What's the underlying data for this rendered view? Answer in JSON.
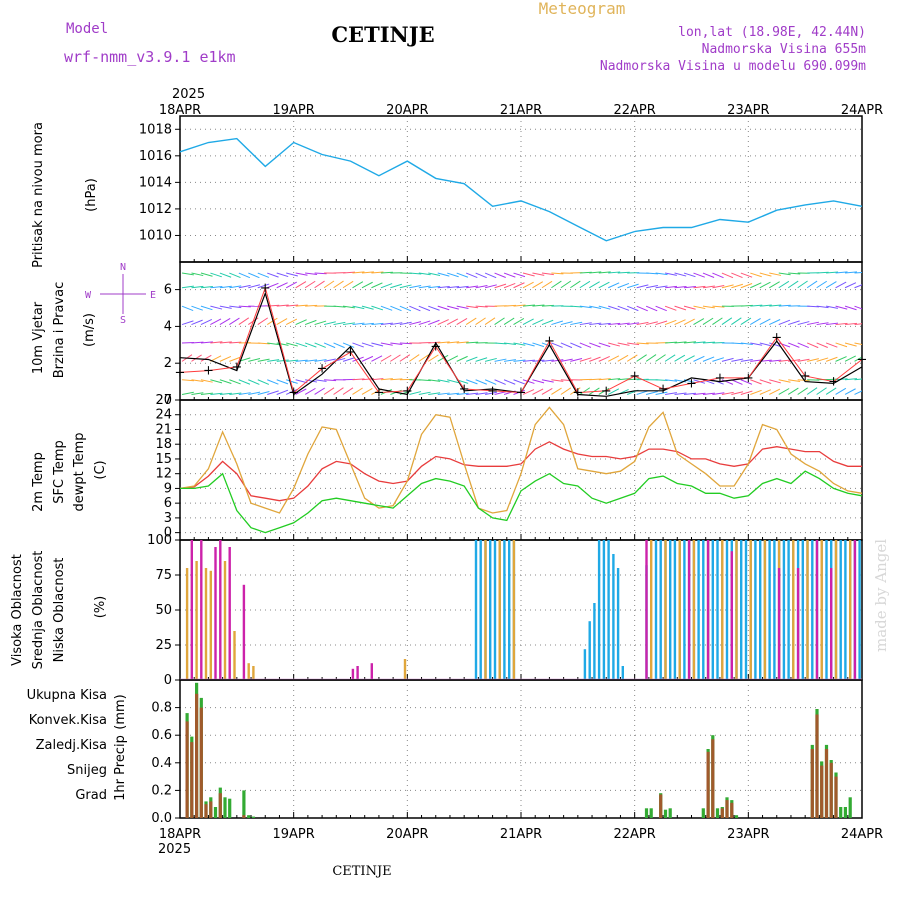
{
  "header": {
    "model_label": "Model",
    "model_value": "wrf-nmm_v3.9.1 e1km",
    "station_title": "CETINJE",
    "product": "Meteogram",
    "lonlat": "lon,lat (18.98E, 42.44N)",
    "altitude": "Nadmorska Visina 655m",
    "model_altitude": "Nadmorska Visina u modelu 690.099m",
    "year_top": "2025",
    "year_bottom": "2025",
    "footer_station": "CETINJE",
    "watermark": "made by Angel"
  },
  "colors": {
    "pressure": "#1fa9e6",
    "wind_speed": "#000000",
    "gust": "#ff3c3c",
    "temp2m": "#e83c3c",
    "sfc_temp": "#e0a63c",
    "dewpoint": "#22cc22",
    "cloud_high": "#1fa9e6",
    "cloud_mid": "#e0a63c",
    "cloud_low": "#cc22aa",
    "precip_total": "#33aa33",
    "precip_conv": "#ff3333",
    "precip_strat": "#ff8833",
    "snow": "#3333ff",
    "graupel": "#22cccc",
    "watermark": "#d8d8d8"
  },
  "chart_data": [
    {
      "type": "line",
      "name": "pressure",
      "ylabel_lines": [
        "Pritisak na nivou mora"
      ],
      "unit": "(hPa)",
      "x_ticks": [
        "18APR",
        "19APR",
        "20APR",
        "21APR",
        "22APR",
        "23APR",
        "24APR"
      ],
      "ylim": [
        1008,
        1019
      ],
      "y_ticks": [
        1010,
        1012,
        1014,
        1016,
        1018
      ],
      "grid": true,
      "x_hours": [
        0,
        6,
        12,
        18,
        24,
        30,
        36,
        42,
        48,
        54,
        60,
        66,
        72,
        78,
        84,
        90,
        96,
        102,
        108,
        114,
        120,
        126,
        132,
        138,
        144
      ],
      "series": [
        {
          "values": [
            1016.3,
            1017.0,
            1017.3,
            1015.2,
            1017.0,
            1016.1,
            1015.6,
            1014.5,
            1015.6,
            1014.3,
            1013.9,
            1012.2,
            1012.6,
            1011.8,
            1010.7,
            1009.6,
            1010.3,
            1010.6,
            1010.6,
            1011.2,
            1011.0,
            1011.9,
            1012.3,
            1012.6,
            1012.2
          ]
        }
      ]
    },
    {
      "type": "line",
      "name": "wind",
      "ylabel_lines": [
        "10m Vjetar",
        "Brzina i Pravac"
      ],
      "unit": "(m/s)",
      "compass": [
        "N",
        "W",
        "E",
        "S"
      ],
      "ylim": [
        0,
        7.5
      ],
      "y_ticks": [
        0,
        2,
        4,
        6
      ],
      "grid": true,
      "x_hours": [
        0,
        6,
        12,
        18,
        24,
        30,
        36,
        42,
        48,
        54,
        60,
        66,
        72,
        78,
        84,
        90,
        96,
        102,
        108,
        114,
        120,
        126,
        132,
        138,
        144
      ],
      "series": [
        {
          "name": "speed",
          "values": [
            2.3,
            2.2,
            1.6,
            5.8,
            0.3,
            1.4,
            2.9,
            0.6,
            0.3,
            3.1,
            0.5,
            0.6,
            0.4,
            3.0,
            0.3,
            0.2,
            0.5,
            0.5,
            1.2,
            1.0,
            1.2,
            3.2,
            1.0,
            0.9,
            1.8
          ]
        },
        {
          "name": "gust",
          "values": [
            1.5,
            1.6,
            1.8,
            6.1,
            0.4,
            1.7,
            2.6,
            0.4,
            0.5,
            2.9,
            0.6,
            0.5,
            0.4,
            3.2,
            0.4,
            0.5,
            1.3,
            0.6,
            0.9,
            1.2,
            1.2,
            3.4,
            1.3,
            1.0,
            2.2
          ]
        }
      ]
    },
    {
      "type": "line",
      "name": "temperature",
      "ylabel_lines": [
        "2m Temp",
        "SFC Temp",
        "dewpt Temp"
      ],
      "unit": "(C)",
      "ylim": [
        -1.5,
        27
      ],
      "y_ticks": [
        0,
        3,
        6,
        9,
        12,
        15,
        18,
        21,
        24,
        27
      ],
      "grid": true,
      "x_hours": [
        0,
        3,
        6,
        9,
        12,
        15,
        18,
        21,
        24,
        27,
        30,
        33,
        36,
        39,
        42,
        45,
        48,
        51,
        54,
        57,
        60,
        63,
        66,
        69,
        72,
        75,
        78,
        81,
        84,
        87,
        90,
        93,
        96,
        99,
        102,
        105,
        108,
        111,
        114,
        117,
        120,
        123,
        126,
        129,
        132,
        135,
        138,
        141,
        144
      ],
      "series": [
        {
          "name": "2m Temp",
          "values": [
            9.0,
            9.3,
            11.5,
            14.5,
            12.0,
            7.5,
            7.0,
            6.5,
            7.0,
            9.5,
            13.0,
            14.5,
            14.0,
            12.0,
            10.5,
            10.0,
            10.5,
            13.5,
            15.5,
            15.0,
            13.8,
            13.5,
            13.5,
            13.5,
            14.0,
            17.0,
            18.5,
            17.0,
            16.0,
            15.5,
            15.5,
            15.0,
            15.5,
            17.0,
            17.0,
            16.5,
            15.0,
            15.0,
            14.0,
            13.5,
            14.0,
            17.0,
            17.5,
            17.0,
            16.5,
            16.5,
            14.5,
            13.5,
            13.5
          ]
        },
        {
          "name": "SFC Temp",
          "values": [
            9.0,
            9.5,
            13.0,
            20.5,
            14.0,
            6.0,
            5.0,
            4.0,
            9.0,
            16.0,
            21.5,
            21.0,
            14.0,
            7.0,
            5.0,
            5.5,
            10.5,
            20.0,
            24.0,
            23.5,
            14.0,
            5.0,
            4.0,
            4.5,
            12.0,
            22.0,
            25.5,
            22.0,
            13.0,
            12.5,
            12.0,
            12.5,
            14.5,
            21.5,
            24.5,
            16.0,
            14.0,
            12.0,
            9.5,
            9.5,
            14.0,
            22.0,
            21.0,
            16.0,
            14.0,
            12.5,
            10.0,
            8.5,
            8.0
          ]
        },
        {
          "name": "dewpt Temp",
          "values": [
            9.0,
            9.0,
            9.5,
            12.0,
            4.5,
            1.0,
            0.0,
            1.0,
            2.0,
            4.0,
            6.5,
            7.0,
            6.5,
            6.0,
            5.5,
            5.0,
            7.5,
            10.0,
            11.0,
            10.5,
            9.5,
            5.0,
            3.0,
            2.5,
            8.5,
            10.5,
            12.0,
            10.0,
            9.5,
            7.0,
            6.0,
            7.0,
            8.0,
            11.0,
            11.5,
            10.0,
            9.5,
            8.0,
            8.0,
            7.0,
            7.5,
            10.0,
            11.0,
            10.0,
            12.5,
            11.0,
            9.0,
            8.0,
            7.5
          ]
        }
      ]
    },
    {
      "type": "bar",
      "name": "cloud",
      "ylabel_lines": [
        "Visoka Oblacnost",
        "Srednja Oblacnost",
        "Niska Oblacnost"
      ],
      "unit": "(%)",
      "ylim": [
        0,
        100
      ],
      "y_ticks": [
        0,
        25,
        50,
        75,
        100
      ],
      "grid": true,
      "series": [
        {
          "name": "Visoka Oblacnost",
          "bars": [
            [
              62,
              100
            ],
            [
              63,
              100
            ],
            [
              64,
              100
            ],
            [
              65,
              100
            ],
            [
              66,
              100
            ],
            [
              67,
              100
            ],
            [
              68,
              100
            ],
            [
              69,
              100
            ],
            [
              70,
              100
            ],
            [
              85,
              22
            ],
            [
              86,
              42
            ],
            [
              87,
              55
            ],
            [
              88,
              100
            ],
            [
              89,
              100
            ],
            [
              90,
              100
            ],
            [
              91,
              90
            ],
            [
              92,
              80
            ],
            [
              93,
              10
            ],
            [
              98,
              82
            ],
            [
              100,
              100
            ],
            [
              101,
              100
            ],
            [
              102,
              100
            ],
            [
              103,
              100
            ],
            [
              104,
              100
            ],
            [
              105,
              100
            ],
            [
              106,
              100
            ],
            [
              107,
              100
            ],
            [
              108,
              100
            ],
            [
              109,
              100
            ],
            [
              110,
              100
            ],
            [
              111,
              100
            ],
            [
              112,
              100
            ],
            [
              113,
              100
            ],
            [
              114,
              100
            ],
            [
              115,
              100
            ],
            [
              116,
              100
            ],
            [
              117,
              100
            ],
            [
              118,
              100
            ],
            [
              119,
              100
            ],
            [
              120,
              100
            ],
            [
              121,
              100
            ],
            [
              122,
              100
            ],
            [
              123,
              100
            ],
            [
              124,
              100
            ],
            [
              125,
              100
            ],
            [
              126,
              100
            ],
            [
              127,
              100
            ],
            [
              128,
              100
            ],
            [
              129,
              100
            ],
            [
              130,
              100
            ],
            [
              131,
              100
            ],
            [
              132,
              100
            ],
            [
              133,
              100
            ],
            [
              134,
              100
            ],
            [
              135,
              100
            ],
            [
              136,
              100
            ],
            [
              137,
              100
            ],
            [
              138,
              100
            ],
            [
              139,
              100
            ],
            [
              140,
              100
            ],
            [
              141,
              100
            ],
            [
              142,
              100
            ],
            [
              143,
              100
            ]
          ]
        },
        {
          "name": "Srednja Oblacnost",
          "bars": [
            [
              1,
              80
            ],
            [
              3,
              85
            ],
            [
              5,
              80
            ],
            [
              6,
              78
            ],
            [
              9,
              85
            ],
            [
              11,
              35
            ],
            [
              14,
              12
            ],
            [
              15,
              10
            ],
            [
              47,
              15
            ],
            [
              64,
              100
            ],
            [
              67,
              100
            ],
            [
              70,
              100
            ],
            [
              99,
              100
            ],
            [
              102,
              100
            ],
            [
              105,
              100
            ],
            [
              108,
              100
            ],
            [
              111,
              100
            ],
            [
              114,
              100
            ],
            [
              117,
              100
            ],
            [
              120,
              100
            ],
            [
              123,
              100
            ],
            [
              126,
              100
            ],
            [
              129,
              100
            ],
            [
              132,
              100
            ],
            [
              135,
              100
            ],
            [
              138,
              100
            ],
            [
              141,
              100
            ]
          ]
        },
        {
          "name": "Niska Oblacnost",
          "bars": [
            [
              2,
              100
            ],
            [
              4,
              100
            ],
            [
              7,
              95
            ],
            [
              8,
              100
            ],
            [
              10,
              95
            ],
            [
              13,
              68
            ],
            [
              36,
              8
            ],
            [
              37,
              10
            ],
            [
              40,
              12
            ],
            [
              98,
              100
            ],
            [
              107,
              100
            ],
            [
              111,
              100
            ],
            [
              116,
              92
            ],
            [
              126,
              80
            ],
            [
              130,
              80
            ],
            [
              134,
              100
            ],
            [
              137,
              80
            ],
            [
              142,
              100
            ]
          ]
        }
      ]
    },
    {
      "type": "bar",
      "name": "precip",
      "ylabel_lines": [
        "1hr Precip"
      ],
      "unit": "(mm)",
      "legend": [
        "Ukupna Kisa",
        "Konvek.Kisa",
        "Zaledj.Kisa",
        "Snijeg",
        "Grad"
      ],
      "ylim": [
        0,
        1.0
      ],
      "y_ticks": [
        0,
        0.2,
        0.4,
        0.6,
        0.8
      ],
      "grid": true,
      "series": [
        {
          "name": "Ukupna Kisa",
          "bars": [
            [
              1,
              0.76
            ],
            [
              2,
              0.59
            ],
            [
              3,
              0.98
            ],
            [
              4,
              0.87
            ],
            [
              5,
              0.12
            ],
            [
              6,
              0.15
            ],
            [
              7,
              0.08
            ],
            [
              8,
              0.22
            ],
            [
              9,
              0.15
            ],
            [
              10,
              0.14
            ],
            [
              13,
              0.2
            ],
            [
              14,
              0.02
            ],
            [
              15,
              0.01
            ],
            [
              98,
              0.07
            ],
            [
              99,
              0.07
            ],
            [
              101,
              0.18
            ],
            [
              102,
              0.06
            ],
            [
              103,
              0.07
            ],
            [
              110,
              0.07
            ],
            [
              111,
              0.5
            ],
            [
              112,
              0.6
            ],
            [
              113,
              0.07
            ],
            [
              114,
              0.08
            ],
            [
              115,
              0.15
            ],
            [
              116,
              0.13
            ],
            [
              117,
              0.02
            ],
            [
              133,
              0.53
            ],
            [
              134,
              0.79
            ],
            [
              135,
              0.41
            ],
            [
              136,
              0.53
            ],
            [
              137,
              0.42
            ],
            [
              138,
              0.33
            ],
            [
              139,
              0.08
            ],
            [
              140,
              0.08
            ],
            [
              141,
              0.15
            ]
          ]
        },
        {
          "name": "Zaledj.Kisa",
          "bars": [
            [
              1,
              0.7
            ],
            [
              2,
              0.55
            ],
            [
              3,
              0.9
            ],
            [
              4,
              0.8
            ],
            [
              5,
              0.1
            ],
            [
              6,
              0.12
            ],
            [
              8,
              0.18
            ],
            [
              13,
              0.02
            ],
            [
              101,
              0.17
            ],
            [
              111,
              0.48
            ],
            [
              112,
              0.57
            ],
            [
              114,
              0.07
            ],
            [
              115,
              0.13
            ],
            [
              116,
              0.11
            ],
            [
              133,
              0.5
            ],
            [
              134,
              0.75
            ],
            [
              135,
              0.38
            ],
            [
              136,
              0.5
            ],
            [
              137,
              0.4
            ],
            [
              138,
              0.3
            ]
          ]
        }
      ]
    }
  ]
}
